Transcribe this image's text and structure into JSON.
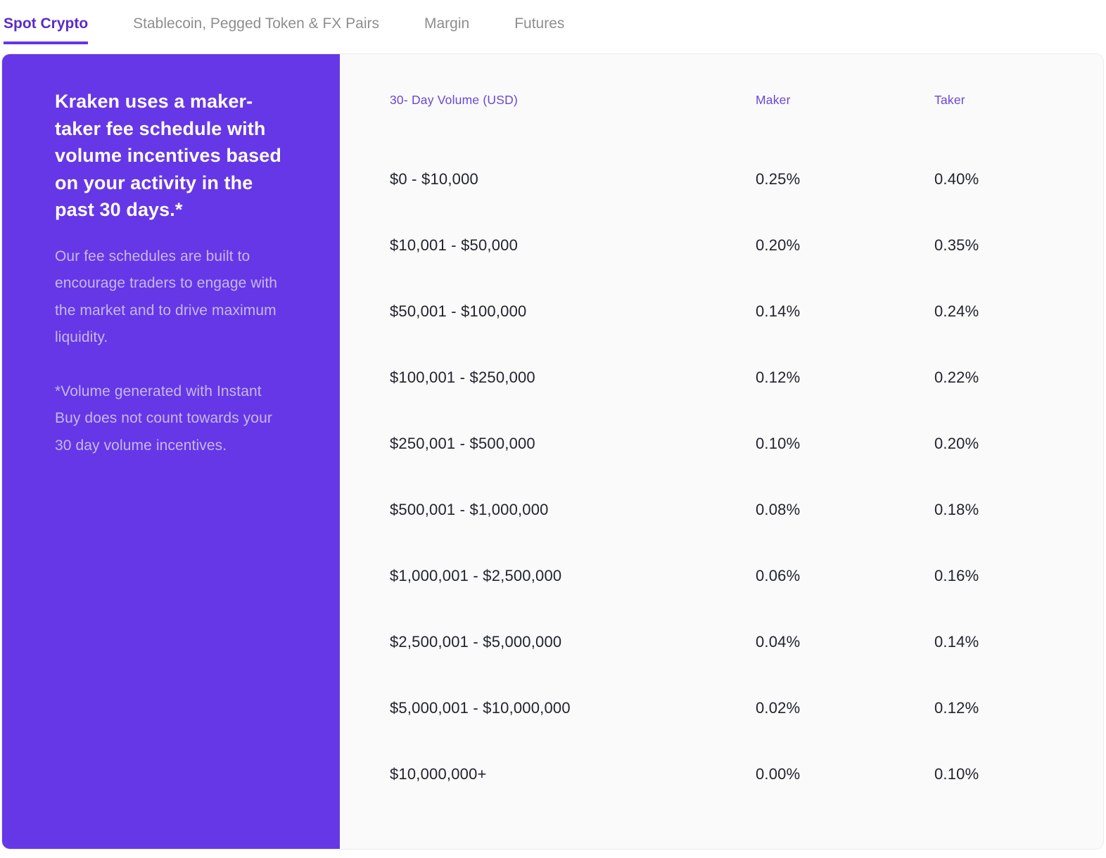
{
  "tabs": [
    {
      "label": "Spot Crypto",
      "active": true
    },
    {
      "label": "Stablecoin, Pegged Token & FX Pairs",
      "active": false
    },
    {
      "label": "Margin",
      "active": false
    },
    {
      "label": "Futures",
      "active": false
    }
  ],
  "panel": {
    "heading": "Kraken uses a maker-taker fee schedule with volume incentives based on your activity in the past 30 days.*",
    "paragraph1": "Our fee schedules are built to encourage traders to engage with the market and to drive maximum liquidity.",
    "paragraph2": "*Volume generated with Instant Buy does not count towards your 30 day volume incentives."
  },
  "table": {
    "headers": {
      "volume": "30- Day Volume (USD)",
      "maker": "Maker",
      "taker": "Taker"
    },
    "rows": [
      {
        "volume": "$0 - $10,000",
        "maker": "0.25%",
        "taker": "0.40%"
      },
      {
        "volume": "$10,001 - $50,000",
        "maker": "0.20%",
        "taker": "0.35%"
      },
      {
        "volume": "$50,001 - $100,000",
        "maker": "0.14%",
        "taker": "0.24%"
      },
      {
        "volume": "$100,001 - $250,000",
        "maker": "0.12%",
        "taker": "0.22%"
      },
      {
        "volume": "$250,001 - $500,000",
        "maker": "0.10%",
        "taker": "0.20%"
      },
      {
        "volume": "$500,001 - $1,000,000",
        "maker": "0.08%",
        "taker": "0.18%"
      },
      {
        "volume": "$1,000,001 - $2,500,000",
        "maker": "0.06%",
        "taker": "0.16%"
      },
      {
        "volume": "$2,500,001 - $5,000,000",
        "maker": "0.04%",
        "taker": "0.14%"
      },
      {
        "volume": "$5,000,001 - $10,000,000",
        "maker": "0.02%",
        "taker": "0.12%"
      },
      {
        "volume": "$10,000,000+",
        "maker": "0.00%",
        "taker": "0.10%"
      }
    ]
  },
  "colors": {
    "brand_purple": "#6637e6",
    "active_tab_text": "#5a2bc9",
    "active_tab_underline": "#6435e8",
    "inactive_tab_text": "#8e8e8e",
    "table_header_text": "#6b46d6",
    "table_row_text": "#20242c",
    "panel_paragraph_text": "#c7b7f0",
    "card_background": "#fafafa",
    "page_background": "#ffffff"
  }
}
